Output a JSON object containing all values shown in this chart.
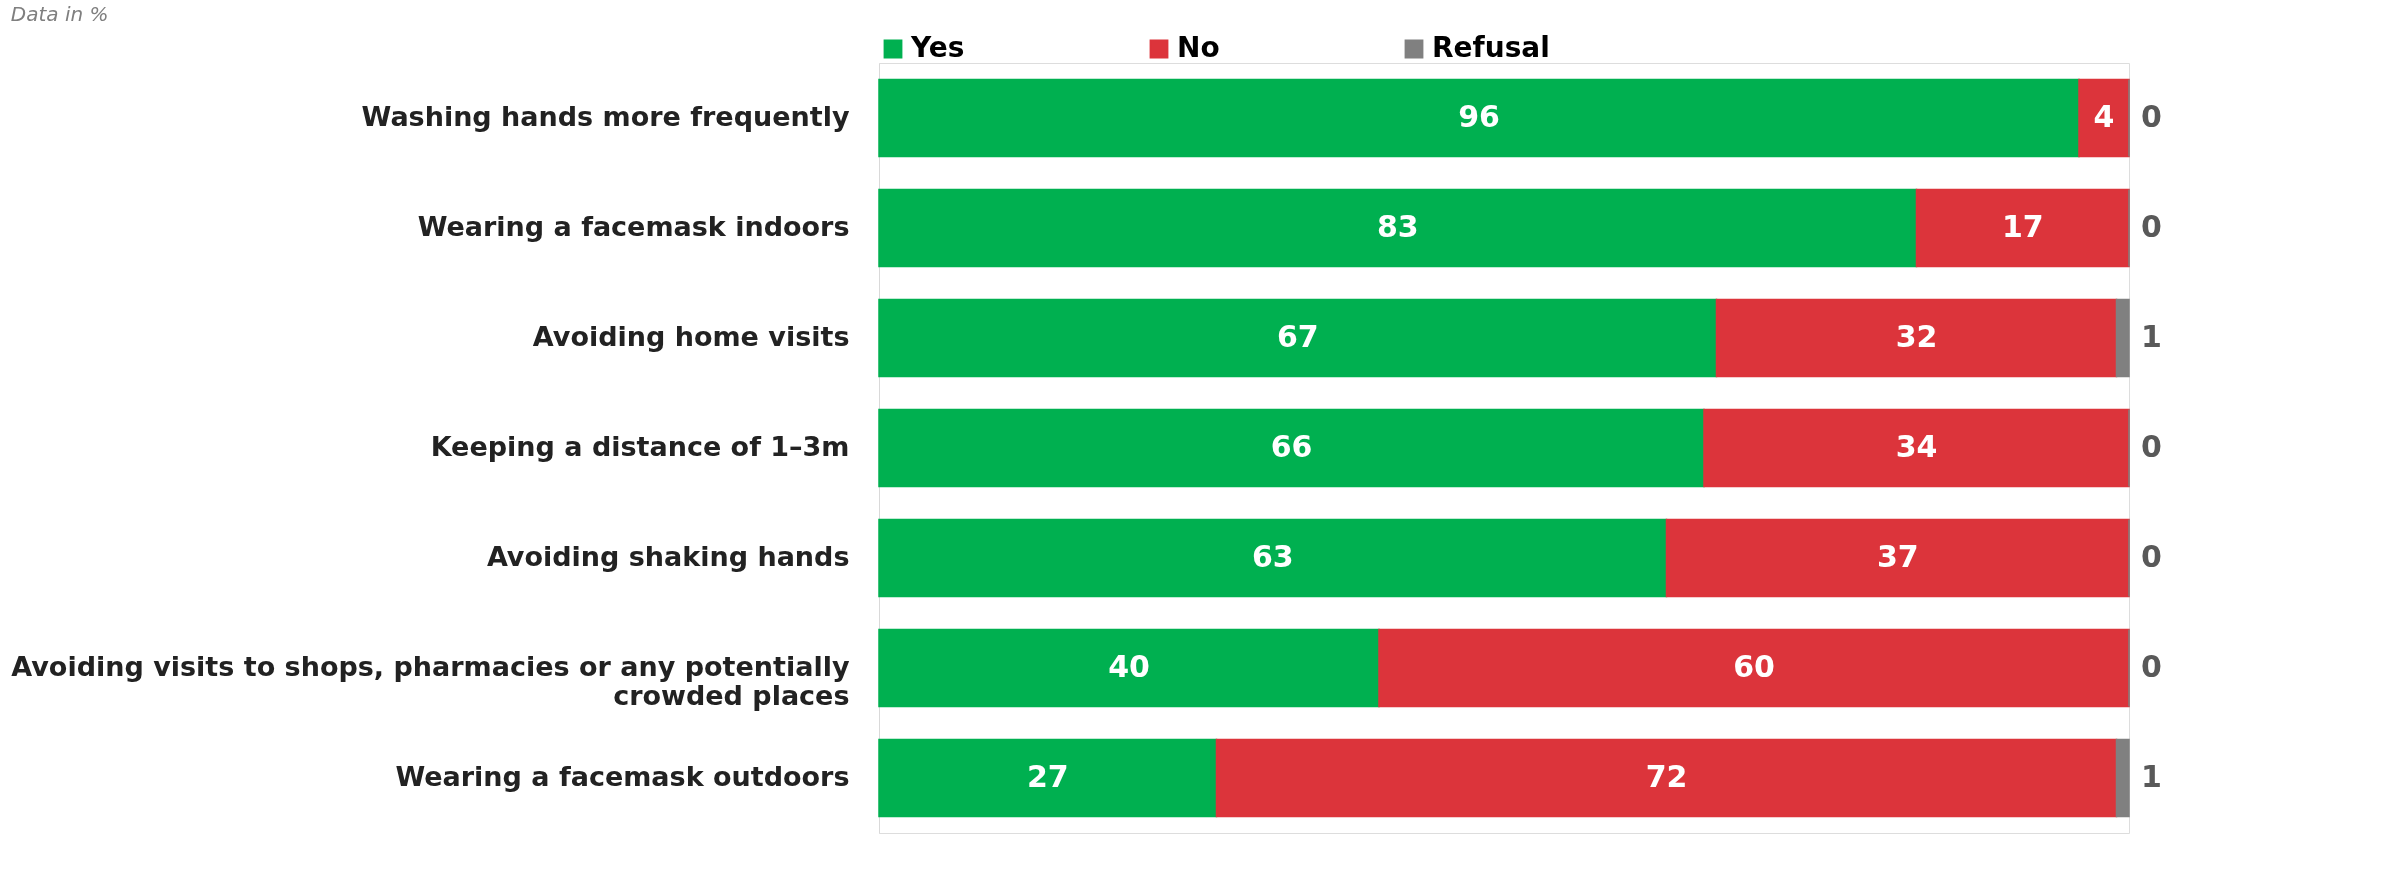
{
  "chart_data": {
    "type": "bar",
    "orientation": "horizontal",
    "stacked": true,
    "data_labels": true,
    "legend": "top",
    "grid": false,
    "annotations": [
      "Data in %"
    ],
    "categories": [
      "Washing hands more frequently",
      "Wearing a facemask indoors",
      "Avoiding home visits",
      "Keeping a distance of 1–3m",
      "Avoiding shaking hands",
      "Avoiding visits to shops, pharmacies or any potentially crowded places",
      "Wearing a facemask outdoors"
    ],
    "series": [
      {
        "name": "Yes",
        "color": "#00b050",
        "values": [
          96,
          83,
          67,
          66,
          63,
          40,
          27
        ]
      },
      {
        "name": "No",
        "color": "#dc343b",
        "values": [
          4,
          17,
          32,
          34,
          37,
          60,
          72
        ]
      },
      {
        "name": "Refusal",
        "color": "#808080",
        "values": [
          0,
          0,
          1,
          0,
          0,
          0,
          1
        ]
      }
    ]
  }
}
